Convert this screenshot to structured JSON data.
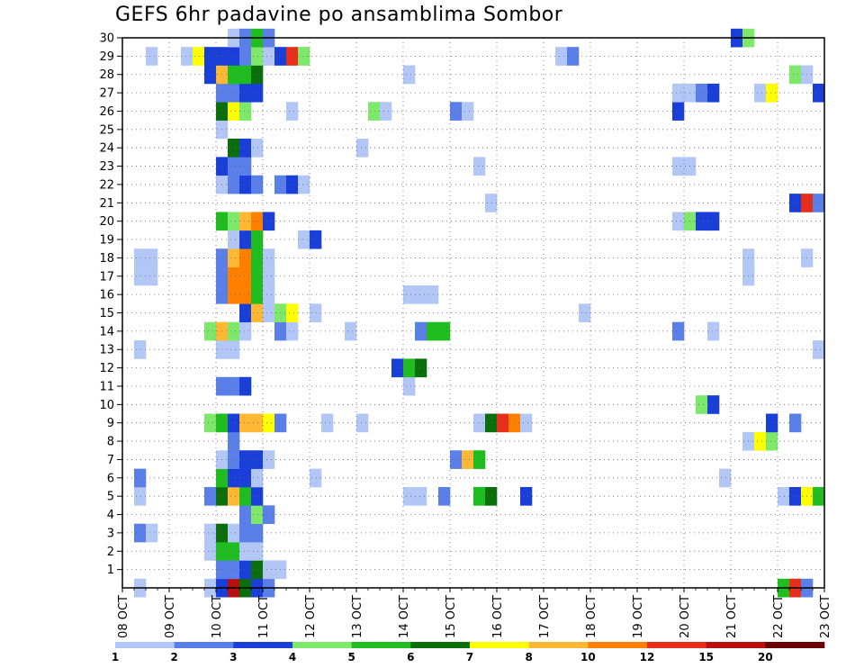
{
  "chart_data": {
    "type": "heatmap",
    "title": "GEFS 6hr padavine po ansamblima Sombor",
    "xlabel": "",
    "ylabel": "",
    "x_ticks": [
      "08 OCT",
      "09 OCT",
      "10 OCT",
      "11 OCT",
      "12 OCT",
      "13 OCT",
      "14 OCT",
      "15 OCT",
      "16 OCT",
      "17 OCT",
      "18 OCT",
      "19 OCT",
      "20 OCT",
      "21 OCT",
      "22 OCT",
      "23 OCT"
    ],
    "y_ticks": [
      "1",
      "2",
      "3",
      "4",
      "5",
      "6",
      "7",
      "8",
      "9",
      "10",
      "11",
      "12",
      "13",
      "14",
      "15",
      "16",
      "17",
      "18",
      "19",
      "20",
      "21",
      "22",
      "23",
      "24",
      "25",
      "26",
      "27",
      "28",
      "29",
      "30"
    ],
    "time_steps": 60,
    "y_range": [
      0,
      30
    ],
    "grid": true,
    "colorbar": {
      "labels": [
        "1",
        "2",
        "3",
        "4",
        "5",
        "6",
        "7",
        "8",
        "10",
        "12",
        "15",
        "20"
      ],
      "colors": [
        "#b3c7f7",
        "#5a7fe8",
        "#1a3fd9",
        "#7ee86b",
        "#1fbd1f",
        "#0a6e0a",
        "#ffff00",
        "#ffb833",
        "#ff7f00",
        "#e62e1a",
        "#b80f0f",
        "#6b0000"
      ]
    },
    "cells": [
      [
        1,
        0,
        1
      ],
      [
        7,
        0,
        1
      ],
      [
        8,
        0,
        3
      ],
      [
        9,
        0,
        11
      ],
      [
        10,
        0,
        6
      ],
      [
        11,
        0,
        3
      ],
      [
        12,
        0,
        2
      ],
      [
        56,
        0,
        5
      ],
      [
        57,
        0,
        10
      ],
      [
        58,
        0,
        2
      ],
      [
        8,
        1,
        2
      ],
      [
        9,
        1,
        2
      ],
      [
        10,
        1,
        3
      ],
      [
        11,
        1,
        6
      ],
      [
        12,
        1,
        1
      ],
      [
        13,
        1,
        1
      ],
      [
        7,
        2,
        1
      ],
      [
        8,
        2,
        5
      ],
      [
        9,
        2,
        5
      ],
      [
        10,
        2,
        1
      ],
      [
        11,
        2,
        1
      ],
      [
        7,
        3,
        1
      ],
      [
        8,
        3,
        6
      ],
      [
        9,
        3,
        1
      ],
      [
        10,
        3,
        2
      ],
      [
        11,
        3,
        2
      ],
      [
        1,
        3,
        2
      ],
      [
        2,
        3,
        1
      ],
      [
        10,
        4,
        2
      ],
      [
        11,
        4,
        4
      ],
      [
        12,
        4,
        2
      ],
      [
        1,
        5,
        1
      ],
      [
        7,
        5,
        2
      ],
      [
        8,
        5,
        6
      ],
      [
        9,
        5,
        8
      ],
      [
        10,
        5,
        5
      ],
      [
        11,
        5,
        3
      ],
      [
        24,
        5,
        1
      ],
      [
        25,
        5,
        1
      ],
      [
        27,
        5,
        2
      ],
      [
        30,
        5,
        5
      ],
      [
        31,
        5,
        6
      ],
      [
        34,
        5,
        3
      ],
      [
        56,
        5,
        1
      ],
      [
        57,
        5,
        3
      ],
      [
        58,
        5,
        7
      ],
      [
        59,
        5,
        5
      ],
      [
        1,
        6,
        2
      ],
      [
        8,
        6,
        5
      ],
      [
        9,
        6,
        3
      ],
      [
        10,
        6,
        3
      ],
      [
        11,
        6,
        1
      ],
      [
        16,
        6,
        1
      ],
      [
        51,
        6,
        1
      ],
      [
        8,
        7,
        1
      ],
      [
        9,
        7,
        2
      ],
      [
        10,
        7,
        3
      ],
      [
        11,
        7,
        3
      ],
      [
        12,
        7,
        1
      ],
      [
        28,
        7,
        2
      ],
      [
        29,
        7,
        8
      ],
      [
        30,
        7,
        5
      ],
      [
        9,
        8,
        2
      ],
      [
        53,
        8,
        1
      ],
      [
        54,
        8,
        7
      ],
      [
        55,
        8,
        4
      ],
      [
        7,
        9,
        4
      ],
      [
        8,
        9,
        5
      ],
      [
        9,
        9,
        3
      ],
      [
        10,
        9,
        8
      ],
      [
        11,
        9,
        8
      ],
      [
        12,
        9,
        7
      ],
      [
        13,
        9,
        2
      ],
      [
        17,
        9,
        1
      ],
      [
        20,
        9,
        1
      ],
      [
        30,
        9,
        1
      ],
      [
        31,
        9,
        6
      ],
      [
        32,
        9,
        10
      ],
      [
        33,
        9,
        9
      ],
      [
        34,
        9,
        1
      ],
      [
        55,
        9,
        3
      ],
      [
        57,
        9,
        2
      ],
      [
        49,
        10,
        4
      ],
      [
        50,
        10,
        3
      ],
      [
        8,
        11,
        2
      ],
      [
        9,
        11,
        2
      ],
      [
        10,
        11,
        3
      ],
      [
        24,
        11,
        1
      ],
      [
        23,
        12,
        3
      ],
      [
        24,
        12,
        5
      ],
      [
        25,
        12,
        6
      ],
      [
        1,
        13,
        1
      ],
      [
        8,
        13,
        1
      ],
      [
        9,
        13,
        1
      ],
      [
        59,
        13,
        1
      ],
      [
        7,
        14,
        4
      ],
      [
        8,
        14,
        8
      ],
      [
        9,
        14,
        4
      ],
      [
        10,
        14,
        1
      ],
      [
        13,
        14,
        2
      ],
      [
        14,
        14,
        1
      ],
      [
        19,
        14,
        1
      ],
      [
        25,
        14,
        2
      ],
      [
        26,
        14,
        5
      ],
      [
        27,
        14,
        5
      ],
      [
        47,
        14,
        2
      ],
      [
        50,
        14,
        1
      ],
      [
        10,
        15,
        3
      ],
      [
        11,
        15,
        8
      ],
      [
        12,
        15,
        1
      ],
      [
        13,
        15,
        4
      ],
      [
        14,
        15,
        7
      ],
      [
        16,
        15,
        1
      ],
      [
        39,
        15,
        1
      ],
      [
        8,
        16,
        2
      ],
      [
        9,
        16,
        9
      ],
      [
        10,
        16,
        9
      ],
      [
        11,
        16,
        5
      ],
      [
        12,
        16,
        1
      ],
      [
        24,
        16,
        1
      ],
      [
        25,
        16,
        1
      ],
      [
        26,
        16,
        1
      ],
      [
        1,
        17,
        1
      ],
      [
        2,
        17,
        1
      ],
      [
        8,
        17,
        2
      ],
      [
        9,
        17,
        9
      ],
      [
        10,
        17,
        9
      ],
      [
        11,
        17,
        5
      ],
      [
        12,
        17,
        1
      ],
      [
        53,
        17,
        1
      ],
      [
        1,
        18,
        1
      ],
      [
        2,
        18,
        1
      ],
      [
        8,
        18,
        2
      ],
      [
        9,
        18,
        8
      ],
      [
        10,
        18,
        9
      ],
      [
        11,
        18,
        5
      ],
      [
        12,
        18,
        1
      ],
      [
        53,
        18,
        1
      ],
      [
        58,
        18,
        1
      ],
      [
        9,
        19,
        1
      ],
      [
        10,
        19,
        3
      ],
      [
        11,
        19,
        5
      ],
      [
        15,
        19,
        1
      ],
      [
        16,
        19,
        3
      ],
      [
        8,
        20,
        5
      ],
      [
        9,
        20,
        4
      ],
      [
        10,
        20,
        8
      ],
      [
        11,
        20,
        9
      ],
      [
        12,
        20,
        3
      ],
      [
        47,
        20,
        1
      ],
      [
        48,
        20,
        4
      ],
      [
        49,
        20,
        3
      ],
      [
        50,
        20,
        3
      ],
      [
        31,
        21,
        1
      ],
      [
        57,
        21,
        3
      ],
      [
        58,
        21,
        10
      ],
      [
        59,
        21,
        2
      ],
      [
        8,
        22,
        1
      ],
      [
        9,
        22,
        2
      ],
      [
        10,
        22,
        3
      ],
      [
        11,
        22,
        2
      ],
      [
        13,
        22,
        2
      ],
      [
        14,
        22,
        3
      ],
      [
        15,
        22,
        1
      ],
      [
        8,
        23,
        3
      ],
      [
        9,
        23,
        2
      ],
      [
        10,
        23,
        2
      ],
      [
        30,
        23,
        1
      ],
      [
        47,
        23,
        1
      ],
      [
        48,
        23,
        1
      ],
      [
        9,
        24,
        6
      ],
      [
        10,
        24,
        3
      ],
      [
        11,
        24,
        1
      ],
      [
        20,
        24,
        1
      ],
      [
        8,
        25,
        1
      ],
      [
        8,
        26,
        6
      ],
      [
        9,
        26,
        7
      ],
      [
        10,
        26,
        4
      ],
      [
        14,
        26,
        1
      ],
      [
        21,
        26,
        4
      ],
      [
        22,
        26,
        1
      ],
      [
        28,
        26,
        2
      ],
      [
        29,
        26,
        1
      ],
      [
        47,
        26,
        3
      ],
      [
        8,
        27,
        2
      ],
      [
        9,
        27,
        2
      ],
      [
        10,
        27,
        3
      ],
      [
        11,
        27,
        3
      ],
      [
        47,
        27,
        1
      ],
      [
        48,
        27,
        1
      ],
      [
        49,
        27,
        2
      ],
      [
        50,
        27,
        3
      ],
      [
        54,
        27,
        1
      ],
      [
        55,
        27,
        7
      ],
      [
        59,
        27,
        3
      ],
      [
        7,
        28,
        3
      ],
      [
        8,
        28,
        8
      ],
      [
        9,
        28,
        5
      ],
      [
        10,
        28,
        5
      ],
      [
        11,
        28,
        6
      ],
      [
        24,
        28,
        1
      ],
      [
        57,
        28,
        4
      ],
      [
        58,
        28,
        1
      ],
      [
        2,
        29,
        1
      ],
      [
        5,
        29,
        1
      ],
      [
        6,
        29,
        7
      ],
      [
        7,
        29,
        3
      ],
      [
        8,
        29,
        3
      ],
      [
        9,
        29,
        3
      ],
      [
        10,
        29,
        2
      ],
      [
        11,
        29,
        4
      ],
      [
        12,
        29,
        1
      ],
      [
        13,
        29,
        3
      ],
      [
        14,
        29,
        10
      ],
      [
        15,
        29,
        4
      ],
      [
        37,
        29,
        1
      ],
      [
        38,
        29,
        2
      ],
      [
        9,
        30,
        1
      ],
      [
        10,
        30,
        2
      ],
      [
        11,
        30,
        5
      ],
      [
        12,
        30,
        2
      ],
      [
        52,
        30,
        3
      ],
      [
        53,
        30,
        4
      ]
    ]
  }
}
